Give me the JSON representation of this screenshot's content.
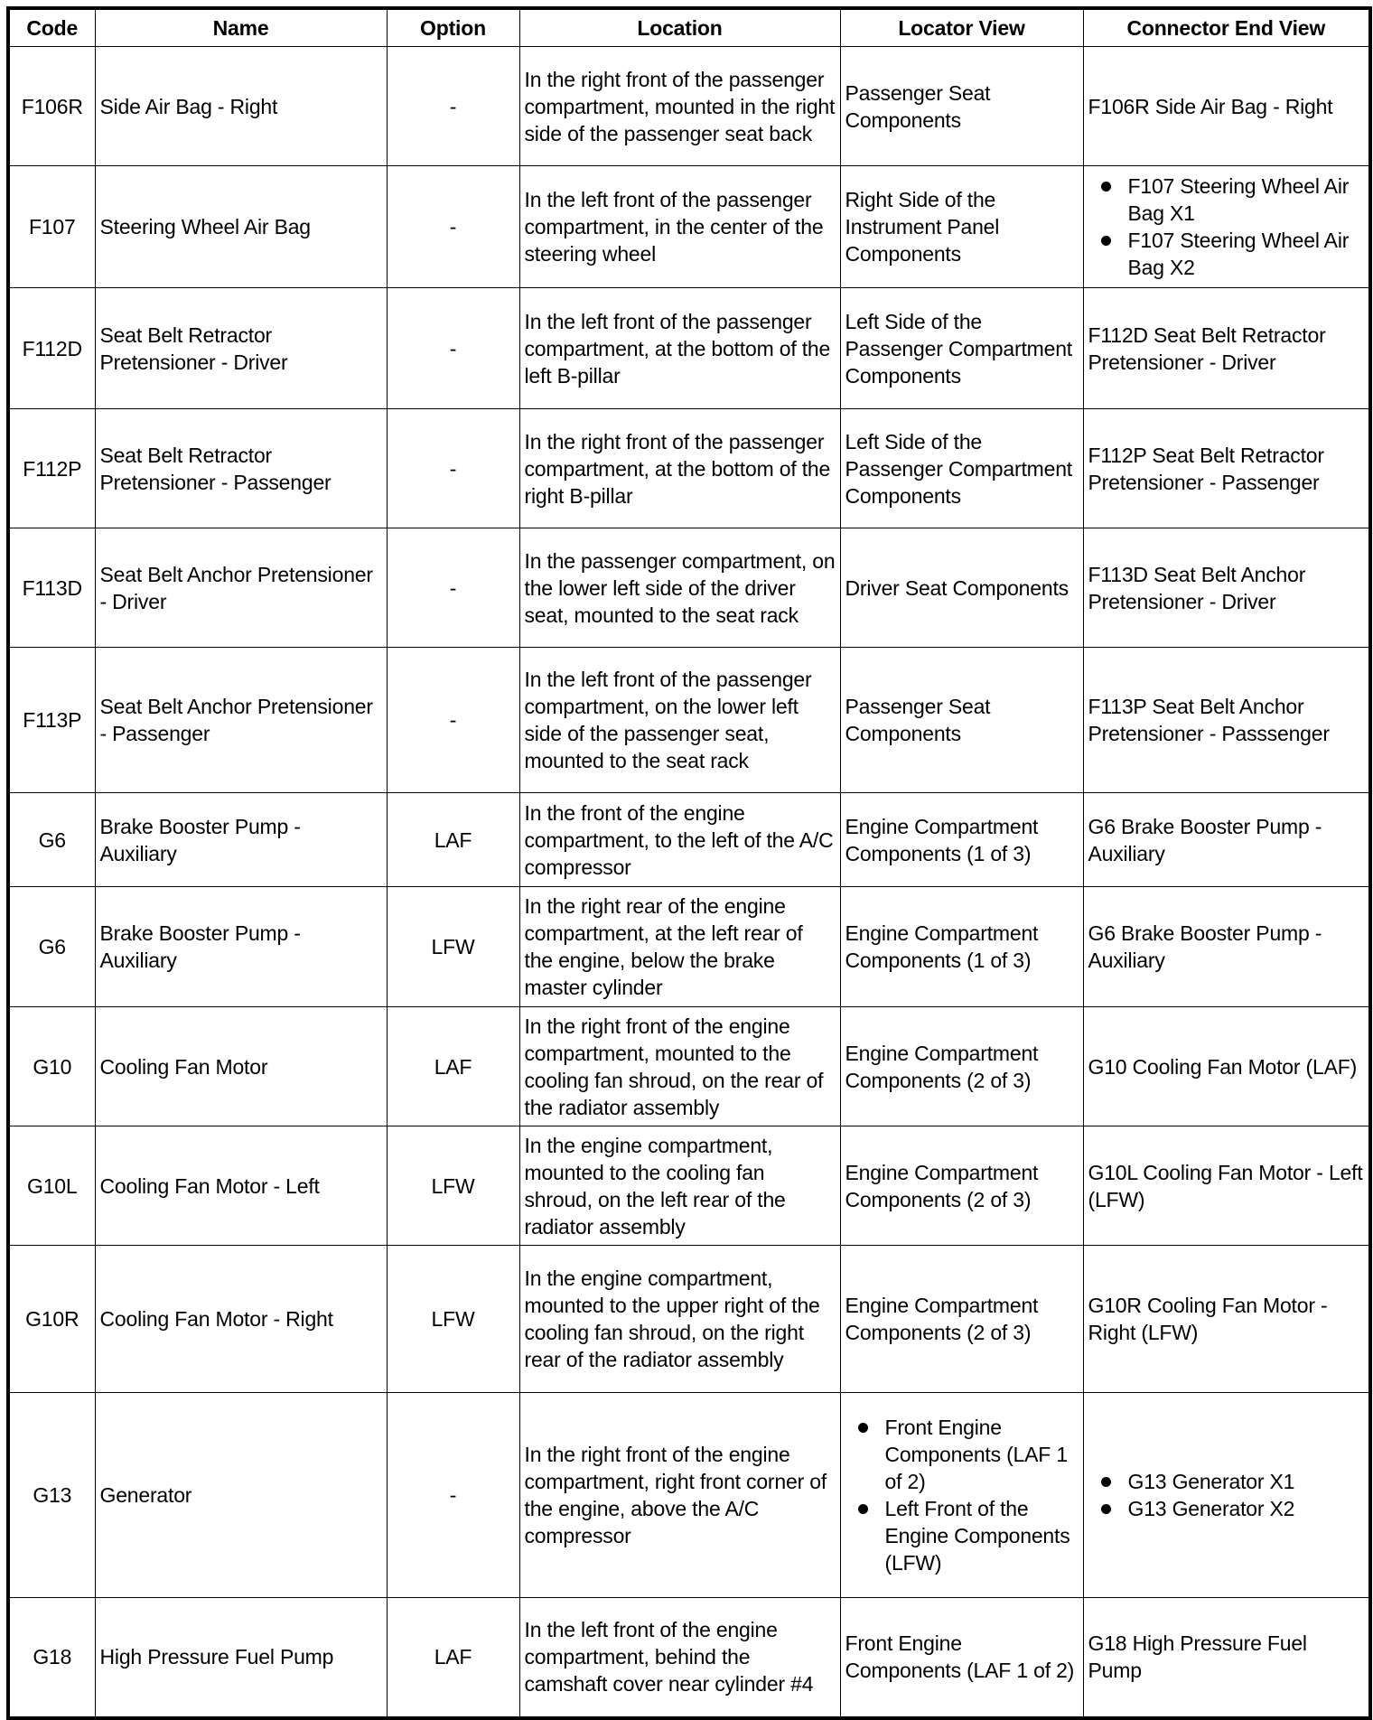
{
  "headers": [
    "Code",
    "Name",
    "Option",
    "Location",
    "Locator View",
    "Connector End View"
  ],
  "rows": [
    {
      "code": "F106R",
      "name": "Side Air Bag - Right",
      "option": "-",
      "location": "In the right front of the passenger compartment, mounted in the right side of the passenger seat back",
      "locator": [
        "Passenger Seat Components"
      ],
      "connector": [
        "F106R Side Air Bag - Right"
      ]
    },
    {
      "code": "F107",
      "name": "Steering Wheel Air Bag",
      "option": "-",
      "location": "In the left front of the passenger compartment, in the center of the steering wheel",
      "locator": [
        "Right Side of the Instrument Panel Components"
      ],
      "connector": [
        "F107 Steering Wheel Air Bag X1",
        "F107 Steering Wheel Air Bag X2"
      ]
    },
    {
      "code": "F112D",
      "name": "Seat Belt Retractor Pretensioner - Driver",
      "option": "-",
      "location": "In the left front of the passenger compartment, at the bottom of the left B-pillar",
      "locator": [
        "Left Side of the Passenger Compartment Components"
      ],
      "connector": [
        "F112D Seat Belt Retractor Pretensioner - Driver"
      ]
    },
    {
      "code": "F112P",
      "name": "Seat Belt Retractor Pretensioner - Passenger",
      "option": "-",
      "location": "In the right front of the passenger compartment, at the bottom of the right B-pillar",
      "locator": [
        "Left Side of the Passenger Compartment Components"
      ],
      "connector": [
        "F112P Seat Belt Retractor Pretensioner - Passenger"
      ]
    },
    {
      "code": "F113D",
      "name": "Seat Belt Anchor Pretensioner - Driver",
      "option": "-",
      "location": "In the passenger compartment, on the lower left side of the driver seat, mounted to the seat rack",
      "locator": [
        "Driver Seat Components"
      ],
      "connector": [
        "F113D Seat Belt Anchor Pretensioner - Driver"
      ]
    },
    {
      "code": "F113P",
      "name": "Seat Belt Anchor Pretensioner - Passenger",
      "option": "-",
      "location": "In the left front of the passenger compartment, on the lower left side of the passenger seat, mounted to the seat rack",
      "locator": [
        "Passenger Seat Components"
      ],
      "connector": [
        "F113P Seat Belt Anchor Pretensioner - Passsenger"
      ]
    },
    {
      "code": "G6",
      "name": "Brake Booster Pump - Auxiliary",
      "option": "LAF",
      "location": "In the front of the engine compartment, to the left of the A/C compressor",
      "locator": [
        "Engine Compartment Components (1 of 3)"
      ],
      "connector": [
        "G6 Brake Booster Pump - Auxiliary"
      ]
    },
    {
      "code": "G6",
      "name": "Brake Booster Pump - Auxiliary",
      "option": "LFW",
      "location": "In the right rear of the engine compartment, at the left rear of the engine, below the brake master cylinder",
      "locator": [
        "Engine Compartment Components (1 of 3)"
      ],
      "connector": [
        "G6 Brake Booster Pump - Auxiliary"
      ]
    },
    {
      "code": "G10",
      "name": "Cooling Fan Motor",
      "option": "LAF",
      "location": "In the right front of the engine compartment, mounted to the cooling fan shroud, on the rear of the radiator assembly",
      "locator": [
        "Engine Compartment Components (2 of 3)"
      ],
      "connector": [
        "G10 Cooling Fan Motor (LAF)"
      ]
    },
    {
      "code": "G10L",
      "name": "Cooling Fan Motor - Left",
      "option": "LFW",
      "location": "In the engine compartment, mounted to the cooling fan shroud, on the left rear of the radiator assembly",
      "locator": [
        "Engine Compartment Components (2 of 3)"
      ],
      "connector": [
        "G10L Cooling Fan Motor - Left (LFW)"
      ]
    },
    {
      "code": "G10R",
      "name": "Cooling Fan Motor - Right",
      "option": "LFW",
      "location": "In the engine compartment, mounted to the upper right of the cooling fan shroud, on the right rear of the radiator assembly",
      "locator": [
        "Engine Compartment Components (2 of 3)"
      ],
      "connector": [
        "G10R Cooling Fan Motor - Right (LFW)"
      ]
    },
    {
      "code": "G13",
      "name": "Generator",
      "option": "-",
      "location": "In the right front of the engine compartment, right front corner of the engine, above the A/C compressor",
      "locator": [
        "Front Engine Components (LAF 1 of 2)",
        "Left Front of the Engine Components (LFW)"
      ],
      "connector": [
        "G13 Generator X1",
        "G13 Generator X2"
      ]
    },
    {
      "code": "G18",
      "name": "High Pressure Fuel Pump",
      "option": "LAF",
      "location": "In the left front of the engine compartment, behind the camshaft cover near cylinder #4",
      "locator": [
        "Front Engine Components (LAF 1 of 2)"
      ],
      "connector": [
        "G18 High Pressure Fuel Pump"
      ]
    }
  ]
}
